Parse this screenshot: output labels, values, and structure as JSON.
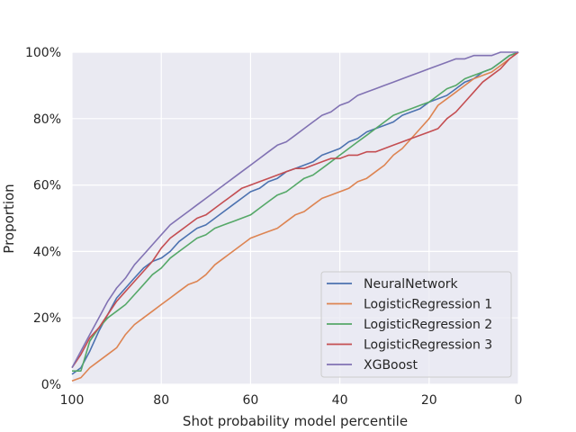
{
  "chart_data": {
    "type": "line",
    "title": "",
    "xlabel": "Shot probability model percentile",
    "ylabel": "Proportion",
    "xlim": [
      100,
      0
    ],
    "ylim": [
      0,
      100
    ],
    "xticks": [
      100,
      80,
      60,
      40,
      20,
      0
    ],
    "yticks": [
      0,
      20,
      40,
      60,
      80,
      100
    ],
    "ytick_labels": [
      "0%",
      "20%",
      "40%",
      "60%",
      "80%",
      "100%"
    ],
    "grid": true,
    "legend_position": "lower-right",
    "x": [
      100,
      98,
      96,
      94,
      92,
      90,
      88,
      86,
      84,
      82,
      80,
      78,
      76,
      74,
      72,
      70,
      68,
      66,
      64,
      62,
      60,
      58,
      56,
      54,
      52,
      50,
      48,
      46,
      44,
      42,
      40,
      38,
      36,
      34,
      32,
      30,
      28,
      26,
      24,
      22,
      20,
      18,
      16,
      14,
      12,
      10,
      8,
      6,
      4,
      2,
      0
    ],
    "series": [
      {
        "name": "NeuralNetwork",
        "color": "#4c72b0",
        "values": [
          3,
          5,
          10,
          16,
          21,
          26,
          29,
          32,
          35,
          37,
          38,
          40,
          43,
          45,
          47,
          48,
          50,
          52,
          54,
          56,
          58,
          59,
          61,
          62,
          64,
          65,
          66,
          67,
          69,
          70,
          71,
          73,
          74,
          76,
          77,
          78,
          79,
          81,
          82,
          83,
          85,
          86,
          87,
          89,
          91,
          92,
          94,
          95,
          97,
          99,
          100
        ]
      },
      {
        "name": "LogisticRegression 1",
        "color": "#dd8452",
        "values": [
          1,
          2,
          5,
          7,
          9,
          11,
          15,
          18,
          20,
          22,
          24,
          26,
          28,
          30,
          31,
          33,
          36,
          38,
          40,
          42,
          44,
          45,
          46,
          47,
          49,
          51,
          52,
          54,
          56,
          57,
          58,
          59,
          61,
          62,
          64,
          66,
          69,
          71,
          74,
          77,
          80,
          84,
          86,
          88,
          90,
          92,
          93,
          94,
          96,
          98,
          100
        ]
      },
      {
        "name": "LogisticRegression 2",
        "color": "#55a868",
        "values": [
          4,
          4,
          13,
          17,
          20,
          22,
          24,
          27,
          30,
          33,
          35,
          38,
          40,
          42,
          44,
          45,
          47,
          48,
          49,
          50,
          51,
          53,
          55,
          57,
          58,
          60,
          62,
          63,
          65,
          67,
          69,
          71,
          73,
          75,
          77,
          79,
          81,
          82,
          83,
          84,
          85,
          87,
          89,
          90,
          92,
          93,
          94,
          95,
          97,
          99,
          100
        ]
      },
      {
        "name": "LogisticRegression 3",
        "color": "#c44e52",
        "values": [
          5,
          9,
          14,
          17,
          21,
          25,
          28,
          31,
          34,
          37,
          41,
          44,
          46,
          48,
          50,
          51,
          53,
          55,
          57,
          59,
          60,
          61,
          62,
          63,
          64,
          65,
          65,
          66,
          67,
          68,
          68,
          69,
          69,
          70,
          70,
          71,
          72,
          73,
          74,
          75,
          76,
          77,
          80,
          82,
          85,
          88,
          91,
          93,
          95,
          98,
          100
        ]
      },
      {
        "name": "XGBoost",
        "color": "#8172b3",
        "values": [
          5,
          10,
          15,
          20,
          25,
          29,
          32,
          36,
          39,
          42,
          45,
          48,
          50,
          52,
          54,
          56,
          58,
          60,
          62,
          64,
          66,
          68,
          70,
          72,
          73,
          75,
          77,
          79,
          81,
          82,
          84,
          85,
          87,
          88,
          89,
          90,
          91,
          92,
          93,
          94,
          95,
          96,
          97,
          98,
          98,
          99,
          99,
          99,
          100,
          100,
          100
        ]
      }
    ]
  }
}
